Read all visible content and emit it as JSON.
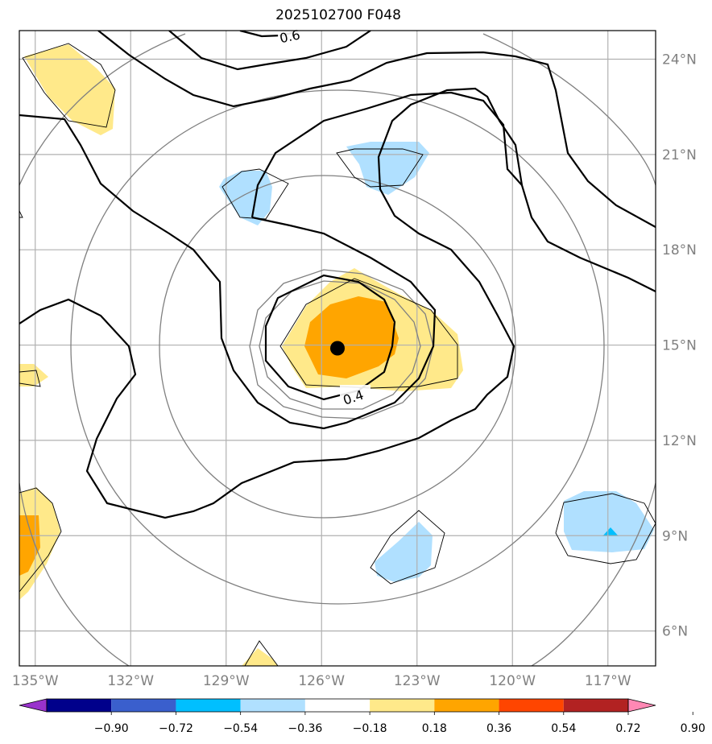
{
  "title": "2025102700 F048",
  "colors": {
    "frame": "#000000",
    "gridlines": "#b0b0b0",
    "range_rings": "#808080",
    "contours": "#000000",
    "storm_center": "#000000"
  },
  "axes": {
    "lon_labels": [
      "135°W",
      "132°W",
      "129°W",
      "126°W",
      "123°W",
      "120°W",
      "117°W"
    ],
    "lat_labels": [
      "24°N",
      "21°N",
      "18°N",
      "15°N",
      "12°N",
      "9°N",
      "6°N"
    ],
    "lon_range": [
      -135.5,
      -115.5
    ],
    "lat_range": [
      4.9,
      24.9
    ]
  },
  "contour_labels": [
    "0.4",
    "0.6"
  ],
  "colorbar": {
    "colors": [
      "#9932cc",
      "#00008b",
      "#3a5fcd",
      "#00bfff",
      "#b0e0ff",
      "#ffffff",
      "#ffe98a",
      "#ffa500",
      "#ff4500",
      "#b22222",
      "#ff88b4"
    ],
    "tick_labels": [
      "−0.90",
      "−0.72",
      "−0.54",
      "−0.36",
      "−0.18",
      "0.18",
      "0.36",
      "0.54",
      "0.72",
      "0.90"
    ]
  },
  "storm_center": {
    "lon": -125.5,
    "lat": 14.9
  }
}
